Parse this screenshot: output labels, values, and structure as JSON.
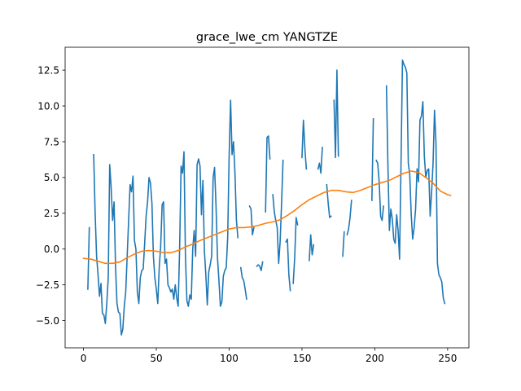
{
  "chart_data": {
    "type": "line",
    "title": "grace_lwe_cm YANGTZE",
    "xlabel": "",
    "ylabel": "",
    "xlim": [
      -12.6,
      264.6
    ],
    "ylim": [
      -6.9,
      14.1
    ],
    "x_ticks": [
      0,
      50,
      100,
      150,
      200,
      250
    ],
    "y_ticks": [
      -5.0,
      -2.5,
      0.0,
      2.5,
      5.0,
      7.5,
      10.0,
      12.5
    ],
    "x_tick_labels": [
      "0",
      "50",
      "100",
      "150",
      "200",
      "250"
    ],
    "y_tick_labels": [
      "−5.0",
      "−2.5",
      "0.0",
      "2.5",
      "5.0",
      "7.5",
      "10.0",
      "12.5"
    ],
    "grid": false,
    "legend": "none",
    "series": [
      {
        "color": "#1f77b4",
        "style": "raw",
        "points": [
          [
            3,
            -2.8
          ],
          [
            4,
            1.5
          ],
          [
            5,
            null
          ],
          [
            7,
            6.6
          ],
          [
            8,
            2.5
          ],
          [
            9,
            -0.5
          ],
          [
            10,
            -1.8
          ],
          [
            11,
            -3.3
          ],
          [
            12,
            -2.4
          ],
          [
            13,
            -4.5
          ],
          [
            14,
            -4.6
          ],
          [
            15,
            -5.2
          ],
          [
            16,
            -3.8
          ],
          [
            17,
            -2.0
          ],
          [
            18,
            5.9
          ],
          [
            19,
            4.3
          ],
          [
            20,
            2.0
          ],
          [
            21,
            3.3
          ],
          [
            22,
            -1.2
          ],
          [
            23,
            -3.8
          ],
          [
            24,
            -4.4
          ],
          [
            25,
            -4.5
          ],
          [
            26,
            -6.0
          ],
          [
            27,
            -5.6
          ],
          [
            28,
            -4.0
          ],
          [
            29,
            -3.0
          ],
          [
            30,
            -0.5
          ],
          [
            31,
            2.0
          ],
          [
            32,
            4.5
          ],
          [
            33,
            4.0
          ],
          [
            34,
            5.1
          ],
          [
            35,
            0.6
          ],
          [
            36,
            0.0
          ],
          [
            37,
            -3.0
          ],
          [
            38,
            -3.8
          ],
          [
            39,
            -2.0
          ],
          [
            40,
            -1.5
          ],
          [
            41,
            -1.4
          ],
          [
            42,
            0.4
          ],
          [
            43,
            2.3
          ],
          [
            44,
            3.3
          ],
          [
            45,
            5.0
          ],
          [
            46,
            4.6
          ],
          [
            47,
            3.2
          ],
          [
            48,
            -0.5
          ],
          [
            49,
            -2.0
          ],
          [
            50,
            -2.8
          ],
          [
            51,
            -3.8
          ],
          [
            52,
            -1.3
          ],
          [
            53,
            0.2
          ],
          [
            54,
            3.1
          ],
          [
            55,
            3.3
          ],
          [
            56,
            -1.0
          ],
          [
            57,
            -0.7
          ],
          [
            58,
            -2.5
          ],
          [
            59,
            -2.7
          ],
          [
            60,
            -3.0
          ],
          [
            61,
            -2.8
          ],
          [
            62,
            -3.5
          ],
          [
            63,
            -2.5
          ],
          [
            64,
            -3.4
          ],
          [
            65,
            -4.0
          ],
          [
            66,
            0.0
          ],
          [
            67,
            5.8
          ],
          [
            68,
            5.3
          ],
          [
            69,
            6.8
          ],
          [
            70,
            -0.5
          ],
          [
            71,
            -3.6
          ],
          [
            72,
            -4.0
          ],
          [
            73,
            -3.2
          ],
          [
            74,
            -3.5
          ],
          [
            75,
            0.0
          ],
          [
            76,
            1.3
          ],
          [
            77,
            -0.5
          ],
          [
            78,
            5.9
          ],
          [
            79,
            6.3
          ],
          [
            80,
            5.8
          ],
          [
            81,
            2.4
          ],
          [
            82,
            4.8
          ],
          [
            83,
            -0.1
          ],
          [
            84,
            -1.8
          ],
          [
            85,
            -3.9
          ],
          [
            86,
            -1.6
          ],
          [
            87,
            -1.1
          ],
          [
            88,
            -0.5
          ],
          [
            89,
            5.0
          ],
          [
            90,
            5.7
          ],
          [
            91,
            3.0
          ],
          [
            92,
            -0.6
          ],
          [
            93,
            -2.2
          ],
          [
            94,
            -4.0
          ],
          [
            95,
            -3.7
          ],
          [
            96,
            -1.9
          ],
          [
            97,
            -1.5
          ],
          [
            98,
            -1.3
          ],
          [
            99,
            0.8
          ],
          [
            100,
            6.5
          ],
          [
            101,
            10.4
          ],
          [
            102,
            6.6
          ],
          [
            103,
            7.5
          ],
          [
            104,
            5.3
          ],
          [
            105,
            2.0
          ],
          [
            106,
            0.8
          ],
          [
            107,
            null
          ],
          [
            108,
            -1.3
          ],
          [
            109,
            -2.0
          ],
          [
            110,
            -2.2
          ],
          [
            111,
            -2.8
          ],
          [
            112,
            -3.5
          ],
          [
            113,
            null
          ],
          [
            114,
            3.0
          ],
          [
            115,
            2.8
          ],
          [
            116,
            1.0
          ],
          [
            117,
            1.5
          ],
          [
            118,
            null
          ],
          [
            119,
            -1.2
          ],
          [
            120,
            -1.1
          ],
          [
            121,
            -1.2
          ],
          [
            122,
            -1.5
          ],
          [
            123,
            -0.9
          ],
          [
            124,
            null
          ],
          [
            125,
            2.6
          ],
          [
            126,
            7.8
          ],
          [
            127,
            7.9
          ],
          [
            128,
            6.3
          ],
          [
            129,
            null
          ],
          [
            130,
            3.8
          ],
          [
            131,
            2.6
          ],
          [
            132,
            2.0
          ],
          [
            133,
            1.5
          ],
          [
            134,
            -1.0
          ],
          [
            135,
            0.5
          ],
          [
            136,
            3.2
          ],
          [
            137,
            6.2
          ],
          [
            138,
            null
          ],
          [
            139,
            0.5
          ],
          [
            140,
            0.7
          ],
          [
            141,
            -1.8
          ],
          [
            142,
            -2.9
          ],
          [
            143,
            null
          ],
          [
            144,
            -2.4
          ],
          [
            145,
            -0.6
          ],
          [
            146,
            2.2
          ],
          [
            147,
            1.7
          ],
          [
            148,
            null
          ],
          [
            150,
            6.4
          ],
          [
            151,
            9.0
          ],
          [
            152,
            7.0
          ],
          [
            153,
            5.6
          ],
          [
            154,
            null
          ],
          [
            155,
            -0.8
          ],
          [
            156,
            1.0
          ],
          [
            157,
            -0.4
          ],
          [
            158,
            0.3
          ],
          [
            159,
            null
          ],
          [
            161,
            5.6
          ],
          [
            162,
            6.0
          ],
          [
            163,
            5.3
          ],
          [
            164,
            7.1
          ],
          [
            165,
            null
          ],
          [
            167,
            4.5
          ],
          [
            168,
            3.2
          ],
          [
            169,
            2.2
          ],
          [
            170,
            2.3
          ],
          [
            171,
            null
          ],
          [
            172,
            10.4
          ],
          [
            173,
            6.4
          ],
          [
            174,
            12.5
          ],
          [
            175,
            6.5
          ],
          [
            176,
            null
          ],
          [
            178,
            -0.5
          ],
          [
            179,
            1.2
          ],
          [
            180,
            null
          ],
          [
            181,
            1.0
          ],
          [
            182,
            1.4
          ],
          [
            183,
            2.2
          ],
          [
            184,
            3.4
          ],
          [
            185,
            null
          ],
          [
            198,
            3.4
          ],
          [
            199,
            9.1
          ],
          [
            200,
            null
          ],
          [
            201,
            6.2
          ],
          [
            202,
            6.0
          ],
          [
            203,
            4.7
          ],
          [
            204,
            2.3
          ],
          [
            205,
            2.0
          ],
          [
            206,
            3.0
          ],
          [
            207,
            null
          ],
          [
            208,
            11.4
          ],
          [
            209,
            5.9
          ],
          [
            210,
            1.3
          ],
          [
            211,
            2.8
          ],
          [
            212,
            2.1
          ],
          [
            213,
            0.7
          ],
          [
            214,
            0.4
          ],
          [
            215,
            2.4
          ],
          [
            216,
            1.3
          ],
          [
            217,
            -0.7
          ],
          [
            218,
            6.0
          ],
          [
            219,
            13.2
          ],
          [
            220,
            12.9
          ],
          [
            221,
            12.7
          ],
          [
            222,
            12.3
          ],
          [
            223,
            6.0
          ],
          [
            224,
            5.2
          ],
          [
            225,
            2.4
          ],
          [
            226,
            0.7
          ],
          [
            227,
            1.5
          ],
          [
            228,
            2.8
          ],
          [
            229,
            5.6
          ],
          [
            230,
            4.7
          ],
          [
            231,
            9.0
          ],
          [
            232,
            9.3
          ],
          [
            233,
            10.3
          ],
          [
            234,
            6.5
          ],
          [
            235,
            5.0
          ],
          [
            236,
            5.5
          ],
          [
            237,
            5.6
          ],
          [
            238,
            2.3
          ],
          [
            239,
            4.0
          ],
          [
            240,
            6.0
          ],
          [
            241,
            9.7
          ],
          [
            242,
            7.4
          ],
          [
            243,
            -1.0
          ],
          [
            244,
            -1.8
          ],
          [
            245,
            -2.0
          ],
          [
            246,
            -2.3
          ],
          [
            247,
            -3.4
          ],
          [
            248,
            -3.8
          ]
        ]
      },
      {
        "color": "#ff7f0e",
        "style": "smoothed",
        "points": [
          [
            0,
            -0.65
          ],
          [
            5,
            -0.7
          ],
          [
            10,
            -0.85
          ],
          [
            15,
            -1.0
          ],
          [
            20,
            -1.0
          ],
          [
            25,
            -0.9
          ],
          [
            30,
            -0.6
          ],
          [
            35,
            -0.35
          ],
          [
            40,
            -0.15
          ],
          [
            45,
            -0.1
          ],
          [
            50,
            -0.15
          ],
          [
            55,
            -0.25
          ],
          [
            60,
            -0.25
          ],
          [
            65,
            -0.1
          ],
          [
            70,
            0.15
          ],
          [
            75,
            0.35
          ],
          [
            80,
            0.6
          ],
          [
            85,
            0.8
          ],
          [
            90,
            1.0
          ],
          [
            95,
            1.2
          ],
          [
            100,
            1.4
          ],
          [
            105,
            1.5
          ],
          [
            110,
            1.5
          ],
          [
            115,
            1.55
          ],
          [
            120,
            1.65
          ],
          [
            125,
            1.8
          ],
          [
            130,
            1.9
          ],
          [
            135,
            2.05
          ],
          [
            140,
            2.35
          ],
          [
            145,
            2.7
          ],
          [
            150,
            3.1
          ],
          [
            155,
            3.45
          ],
          [
            160,
            3.7
          ],
          [
            165,
            3.95
          ],
          [
            170,
            4.1
          ],
          [
            175,
            4.1
          ],
          [
            180,
            4.0
          ],
          [
            185,
            3.95
          ],
          [
            190,
            4.1
          ],
          [
            195,
            4.3
          ],
          [
            200,
            4.5
          ],
          [
            205,
            4.65
          ],
          [
            210,
            4.8
          ],
          [
            215,
            5.05
          ],
          [
            220,
            5.3
          ],
          [
            225,
            5.45
          ],
          [
            230,
            5.35
          ],
          [
            235,
            5.0
          ],
          [
            240,
            4.6
          ],
          [
            245,
            4.05
          ],
          [
            250,
            3.8
          ],
          [
            252,
            3.75
          ]
        ]
      }
    ]
  }
}
